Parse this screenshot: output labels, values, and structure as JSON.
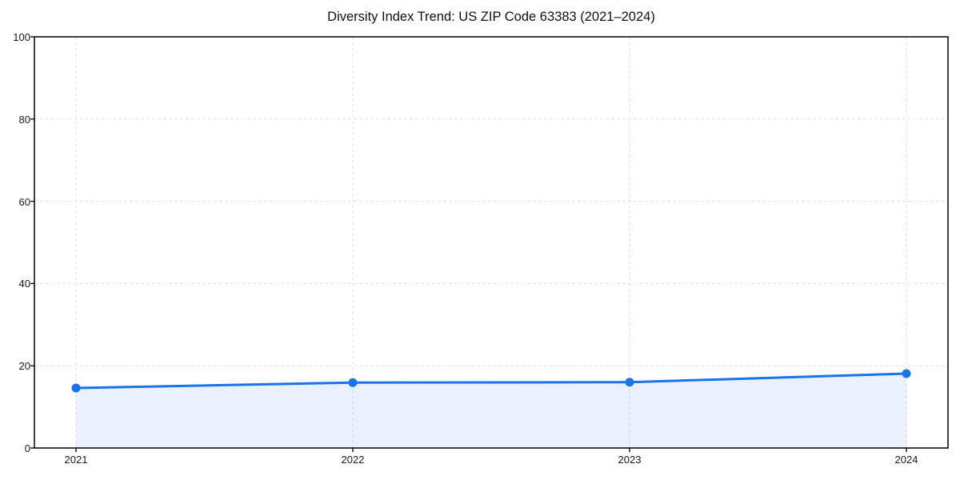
{
  "chart_data": {
    "type": "area",
    "title": "Diversity Index Trend: US ZIP Code 63383 (2021–2024)",
    "categories": [
      "2021",
      "2022",
      "2023",
      "2024"
    ],
    "series": [
      {
        "name": "Diversity Index",
        "values": [
          14.6,
          15.9,
          16.0,
          18.1
        ]
      }
    ],
    "xlabel": "",
    "ylabel": "",
    "ylim": [
      0,
      100
    ],
    "yticks": [
      0,
      20,
      40,
      60,
      80,
      100
    ],
    "grid": "dashed both axes",
    "legend_position": "none",
    "colors": {
      "line": "#1a73e8",
      "marker": "#1a73e8",
      "area_fill": "rgba(26,115,232,0.10)",
      "grid": "#e2e2e2",
      "spine": "#000000",
      "tick_text": "#1a1a1a",
      "title_text": "#111111",
      "background": "#ffffff"
    },
    "marker_style": "filled-circle",
    "line_width": 3
  }
}
